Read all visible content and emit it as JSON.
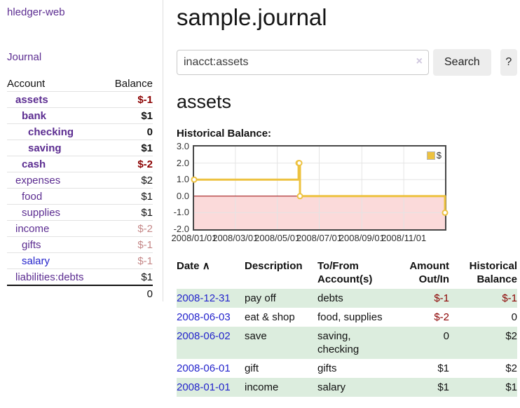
{
  "app": {
    "brand": "hledger-web",
    "nav_journal": "Journal"
  },
  "sidebar": {
    "col_account": "Account",
    "col_balance": "Balance",
    "accounts": [
      {
        "name": "assets",
        "balance": "$-1",
        "indent": 1,
        "bold": true,
        "balance_style": "negative"
      },
      {
        "name": "bank",
        "balance": "$1",
        "indent": 2,
        "bold": true,
        "balance_style": "normal"
      },
      {
        "name": "checking",
        "balance": "0",
        "indent": 3,
        "bold": true,
        "balance_style": "normal"
      },
      {
        "name": "saving",
        "balance": "$1",
        "indent": 3,
        "bold": true,
        "balance_style": "normal"
      },
      {
        "name": "cash",
        "balance": "$-2",
        "indent": 2,
        "bold": true,
        "balance_style": "negative"
      },
      {
        "name": "expenses",
        "balance": "$2",
        "indent": 1,
        "bold": false,
        "balance_style": "normal"
      },
      {
        "name": "food",
        "balance": "$1",
        "indent": 2,
        "bold": false,
        "balance_style": "normal"
      },
      {
        "name": "supplies",
        "balance": "$1",
        "indent": 2,
        "bold": false,
        "balance_style": "normal"
      },
      {
        "name": "income",
        "balance": "$-2",
        "indent": 1,
        "bold": false,
        "balance_style": "negative-faded"
      },
      {
        "name": "gifts",
        "balance": "$-1",
        "indent": 2,
        "bold": false,
        "balance_style": "negative-faded"
      },
      {
        "name": "salary",
        "balance": "$-1",
        "indent": 2,
        "bold": false,
        "balance_style": "negative-faded"
      },
      {
        "name": "liabilities:debts",
        "balance": "$1",
        "indent": 1,
        "bold": false,
        "balance_style": "normal"
      }
    ],
    "total": "0"
  },
  "header": {
    "title": "sample.journal"
  },
  "search": {
    "value": "inacct:assets",
    "clear_icon": "×",
    "button_label": "Search",
    "help_label": "?"
  },
  "account_page": {
    "heading": "assets",
    "chart_label": "Historical Balance:"
  },
  "chart_data": {
    "type": "line",
    "title": "Historical Balance",
    "steps": true,
    "legend_label": "$",
    "legend_position": "top-right",
    "grid": true,
    "ylim": [
      -2.0,
      3.0
    ],
    "y_ticks": [
      "3.0",
      "2.0",
      "1.0",
      "0.0",
      "-1.0",
      "-2.0"
    ],
    "y_tick_values": [
      3,
      2,
      1,
      0,
      -1,
      -2
    ],
    "x_tick_labels": [
      "2008/01/01",
      "2008/03/01",
      "2008/05/01",
      "2008/07/01",
      "2008/09/01",
      "2008/11/01"
    ],
    "x_tick_days": [
      0,
      60,
      121,
      182,
      244,
      305
    ],
    "x_range_days": 365,
    "series": [
      {
        "name": "$",
        "color": "#edc240",
        "points": [
          {
            "date": "2008-01-01",
            "day": 0,
            "y": 1
          },
          {
            "date": "2008-06-01",
            "day": 152,
            "y": 2
          },
          {
            "date": "2008-06-02",
            "day": 153,
            "y": 2
          },
          {
            "date": "2008-06-03",
            "day": 154,
            "y": 0
          },
          {
            "date": "2008-12-31",
            "day": 365,
            "y": -1
          }
        ]
      }
    ],
    "colors": {
      "negative_region_fill": "#fbdada",
      "zero_line": "#990000",
      "grid_line": "#e4e4e4",
      "plot_border": "#474747",
      "marker_fill": "#ffffff"
    }
  },
  "register": {
    "headers": {
      "date": "Date",
      "sort_indicator": "∧",
      "description": "Description",
      "accounts": "To/From Account(s)",
      "amount": "Amount Out/In",
      "balance": "Historical Balance"
    },
    "rows": [
      {
        "date": "2008-12-31",
        "description": "pay off",
        "accounts": "debts",
        "amount": "$-1",
        "balance": "$-1"
      },
      {
        "date": "2008-06-03",
        "description": "eat & shop",
        "accounts": "food, supplies",
        "amount": "$-2",
        "balance": "0"
      },
      {
        "date": "2008-06-02",
        "description": "save",
        "accounts": "saving, checking",
        "amount": "0",
        "balance": "$2"
      },
      {
        "date": "2008-06-01",
        "description": "gift",
        "accounts": "gifts",
        "amount": "$1",
        "balance": "$2"
      },
      {
        "date": "2008-01-01",
        "description": "income",
        "accounts": "salary",
        "amount": "$1",
        "balance": "$1"
      }
    ]
  }
}
